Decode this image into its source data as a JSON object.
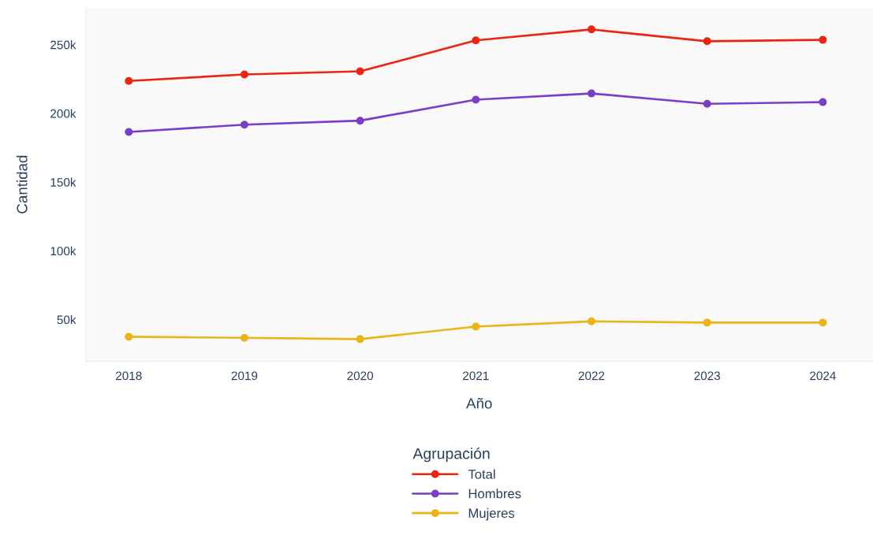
{
  "chart_data": {
    "type": "line",
    "xlabel": "Año",
    "ylabel": "Cantidad",
    "legend_title": "Agrupación",
    "x": [
      2018,
      2019,
      2020,
      2021,
      2022,
      2023,
      2024
    ],
    "series": [
      {
        "name": "Total",
        "color": "#ec2412",
        "values": [
          223600,
          228300,
          230600,
          253100,
          261100,
          252500,
          253500
        ]
      },
      {
        "name": "Hombres",
        "color": "#7a3ec9",
        "values": [
          186500,
          191800,
          194700,
          210000,
          214500,
          207000,
          208200
        ]
      },
      {
        "name": "Mujeres",
        "color": "#ebb314",
        "values": [
          37500,
          36700,
          35800,
          44900,
          48700,
          47800,
          47800
        ]
      }
    ],
    "xlim": [
      2017.63,
      2024.43
    ],
    "xticks": [
      2018,
      2019,
      2020,
      2021,
      2022,
      2023,
      2024
    ],
    "ylim": [
      19600,
      277000
    ],
    "yticks": [
      {
        "value": 50000,
        "label": "50k"
      },
      {
        "value": 100000,
        "label": "100k"
      },
      {
        "value": 150000,
        "label": "150k"
      },
      {
        "value": 200000,
        "label": "200k"
      },
      {
        "value": 250000,
        "label": "250k"
      }
    ],
    "grid": false,
    "legend": "bottom",
    "marker": "circle",
    "line_style": "solid"
  }
}
